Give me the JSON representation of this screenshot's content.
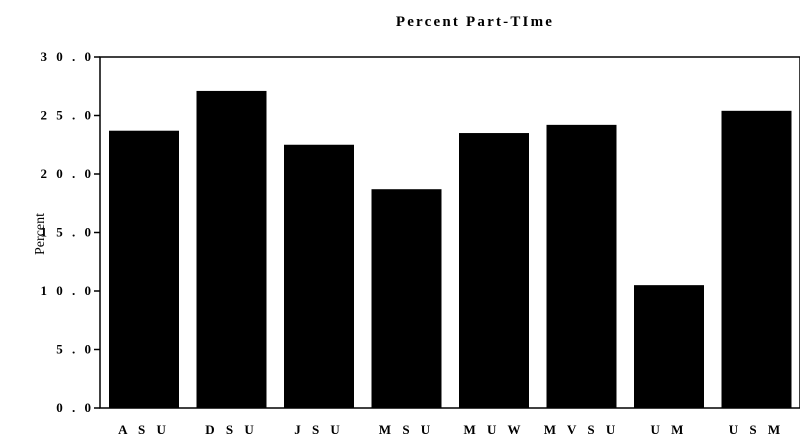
{
  "chart_data": {
    "type": "bar",
    "title": "Percent Part-TIme",
    "ylabel": "Percent",
    "xlabel": "",
    "categories": [
      "ASU",
      "DSU",
      "JSU",
      "MSU",
      "MUW",
      "MVSU",
      "UM",
      "USM"
    ],
    "tick_texts": [
      "A S U",
      "D S U",
      "J S U",
      "M S U",
      "M U W",
      "M V S U",
      "U M",
      "U S M"
    ],
    "values": [
      23.7,
      27.1,
      22.5,
      18.7,
      23.5,
      24.2,
      10.5,
      25.4
    ],
    "ylim": [
      0,
      30
    ],
    "yticks": [
      0,
      5,
      10,
      15,
      20,
      25,
      30
    ],
    "ytick_labels": [
      "0 . 0",
      "5 . 0",
      "1 0 . 0",
      "1 5 . 0",
      "2 0 . 0",
      "2 5 . 0",
      "3 0 . 0"
    ],
    "grid": false,
    "bar_color": "#000000"
  }
}
